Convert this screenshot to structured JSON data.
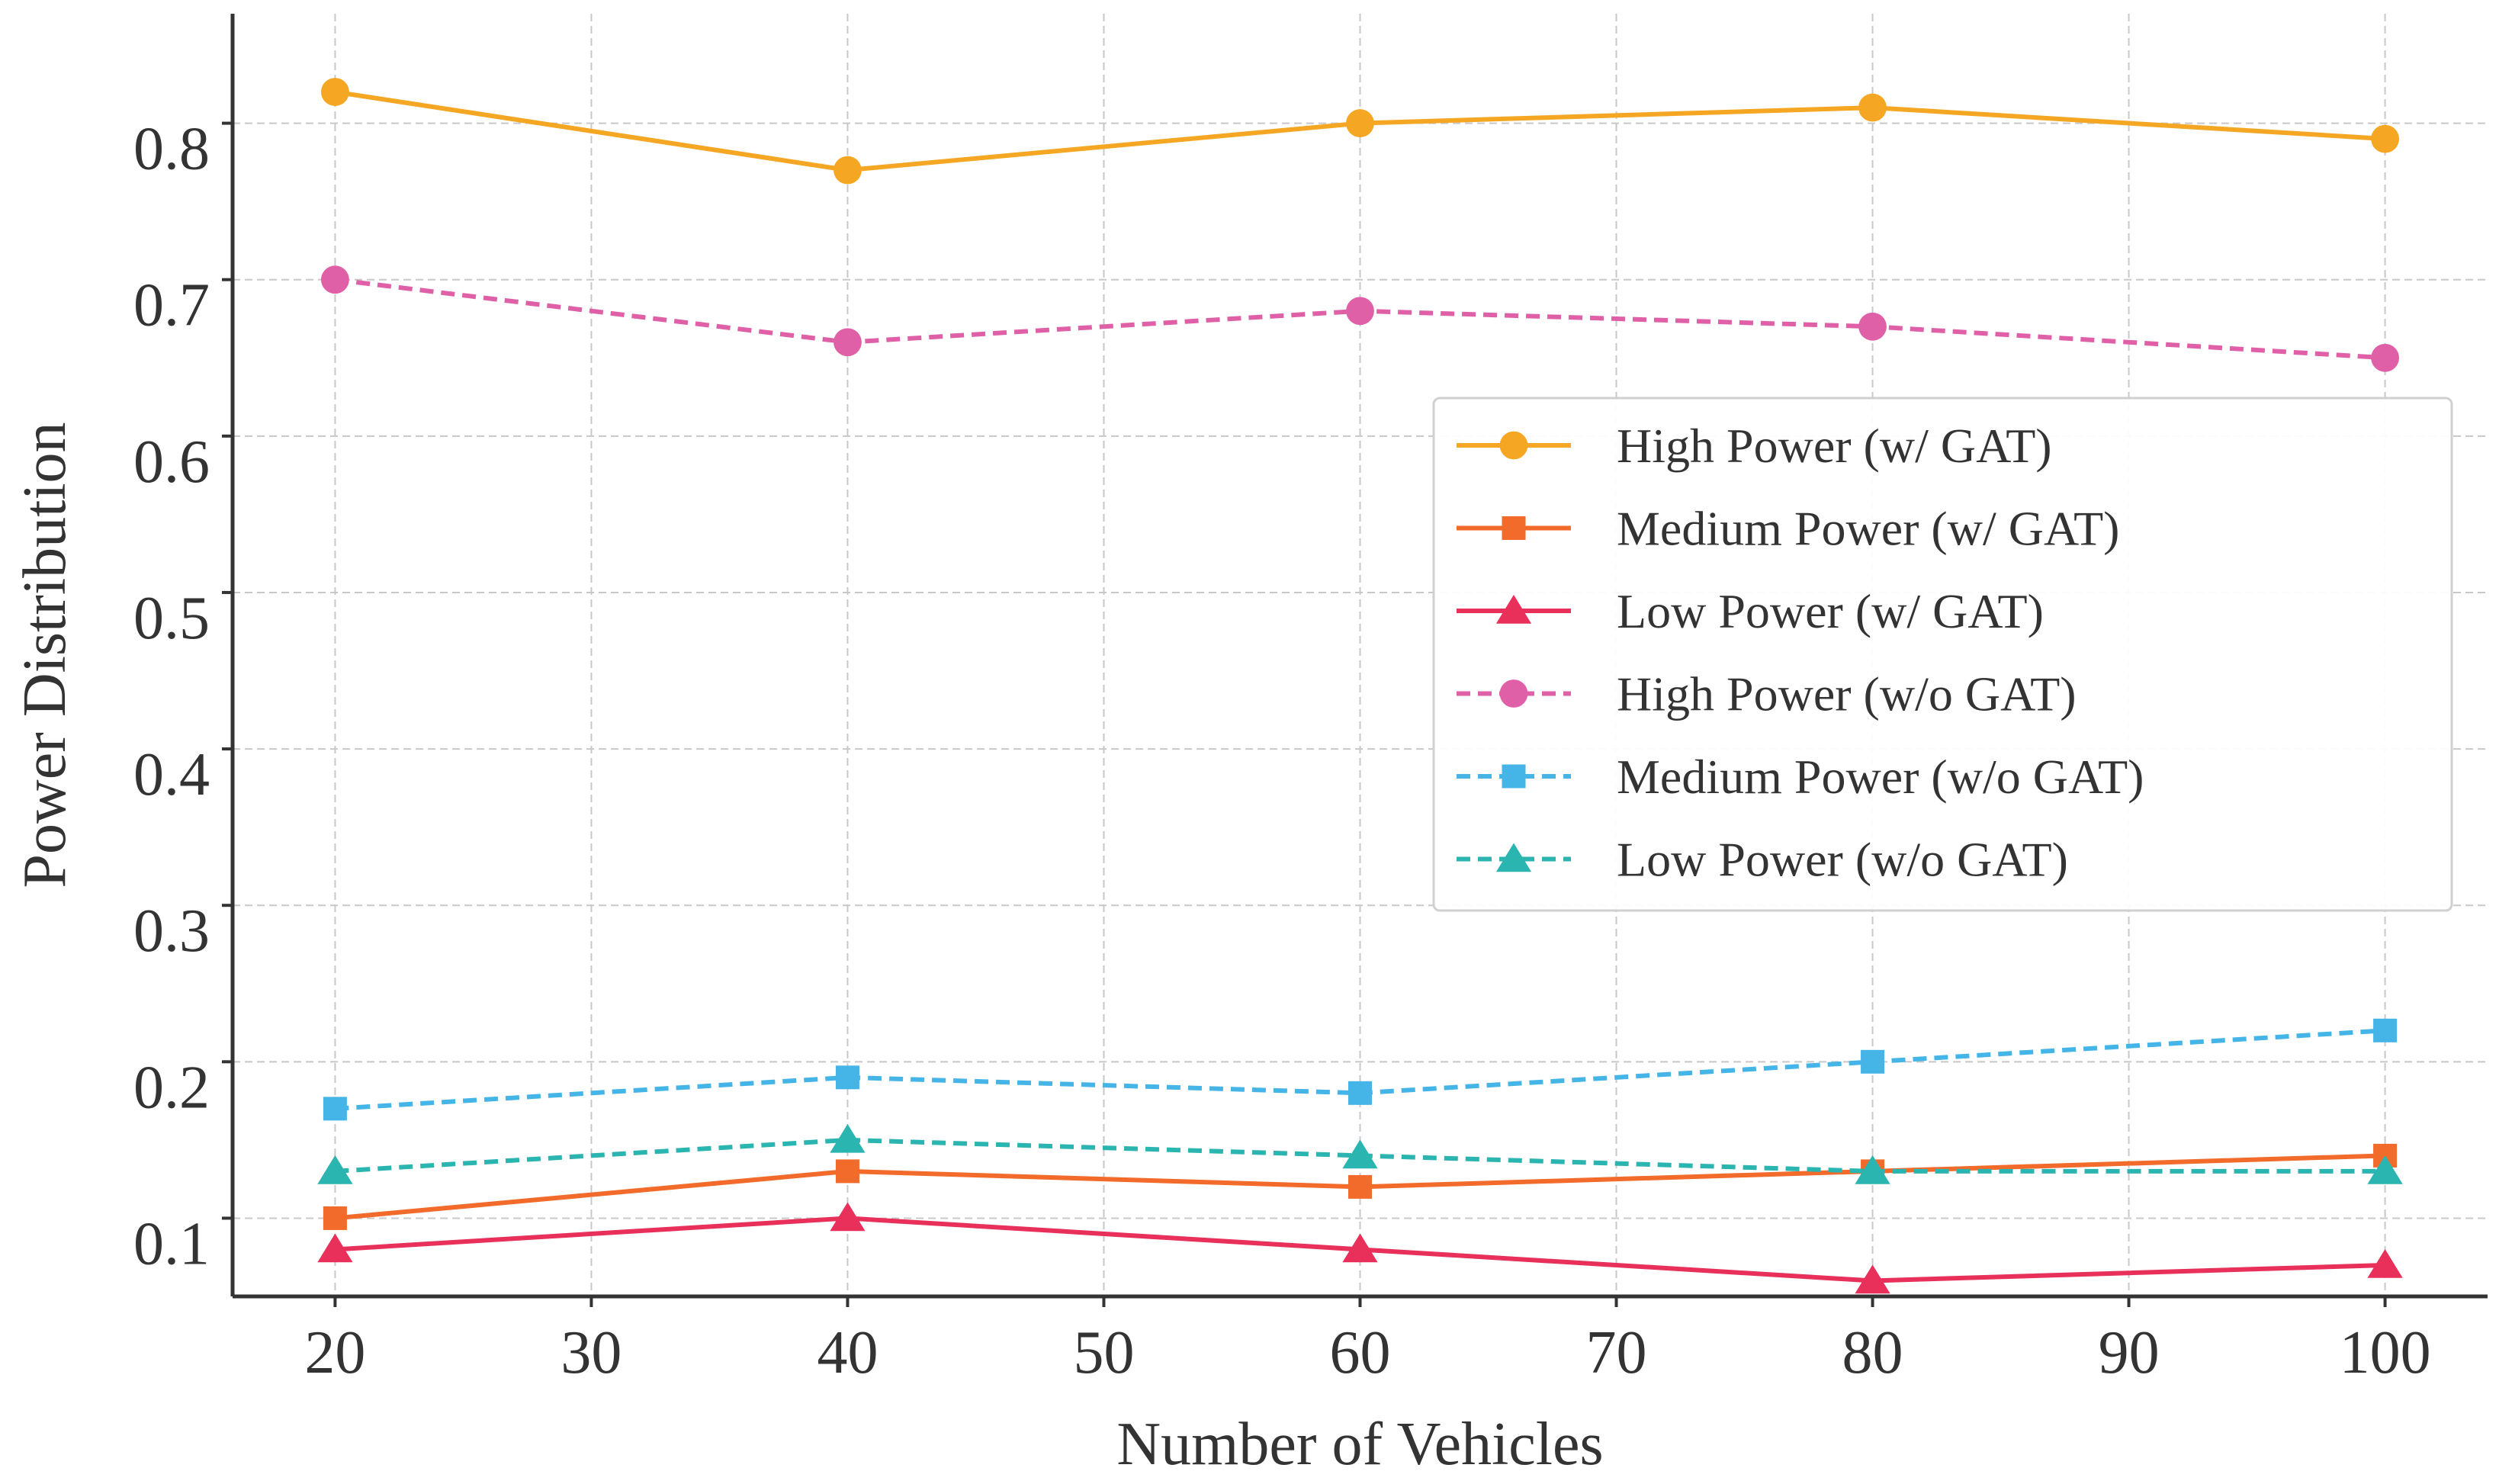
{
  "chart_data": {
    "type": "line",
    "title": "",
    "xlabel": "Number of Vehicles",
    "ylabel": "Power Distribution",
    "x": [
      20,
      40,
      60,
      80,
      100
    ],
    "xlim": [
      16,
      104
    ],
    "ylim": [
      0.05,
      0.87
    ],
    "xticks": [
      20,
      30,
      40,
      50,
      60,
      70,
      80,
      90,
      100
    ],
    "xtick_labels": [
      "20",
      "30",
      "40",
      "50",
      "60",
      "70",
      "80",
      "90",
      "100"
    ],
    "yticks": [
      0.1,
      0.2,
      0.3,
      0.4,
      0.5,
      0.6,
      0.7,
      0.8
    ],
    "ytick_labels": [
      "0.1",
      "0.2",
      "0.3",
      "0.4",
      "0.5",
      "0.6",
      "0.7",
      "0.8"
    ],
    "grid": true,
    "legend_position": "center-right",
    "series": [
      {
        "name": "High Power (w/ GAT)",
        "values": [
          0.82,
          0.77,
          0.8,
          0.81,
          0.79
        ],
        "color": "#F5A623",
        "marker": "circle",
        "dash": false
      },
      {
        "name": "Medium Power (w/ GAT)",
        "values": [
          0.1,
          0.13,
          0.12,
          0.13,
          0.14
        ],
        "color": "#F26B2B",
        "marker": "square",
        "dash": false
      },
      {
        "name": "Low Power (w/ GAT)",
        "values": [
          0.08,
          0.1,
          0.08,
          0.06,
          0.07
        ],
        "color": "#E8305A",
        "marker": "triangle",
        "dash": false
      },
      {
        "name": "High Power (w/o GAT)",
        "values": [
          0.7,
          0.66,
          0.68,
          0.67,
          0.65
        ],
        "color": "#E060A8",
        "marker": "circle",
        "dash": true
      },
      {
        "name": "Medium Power (w/o GAT)",
        "values": [
          0.17,
          0.19,
          0.18,
          0.2,
          0.22
        ],
        "color": "#45B5E8",
        "marker": "square",
        "dash": true
      },
      {
        "name": "Low Power (w/o GAT)",
        "values": [
          0.13,
          0.15,
          0.14,
          0.13,
          0.13
        ],
        "color": "#2BB5B0",
        "marker": "triangle",
        "dash": true
      }
    ]
  }
}
